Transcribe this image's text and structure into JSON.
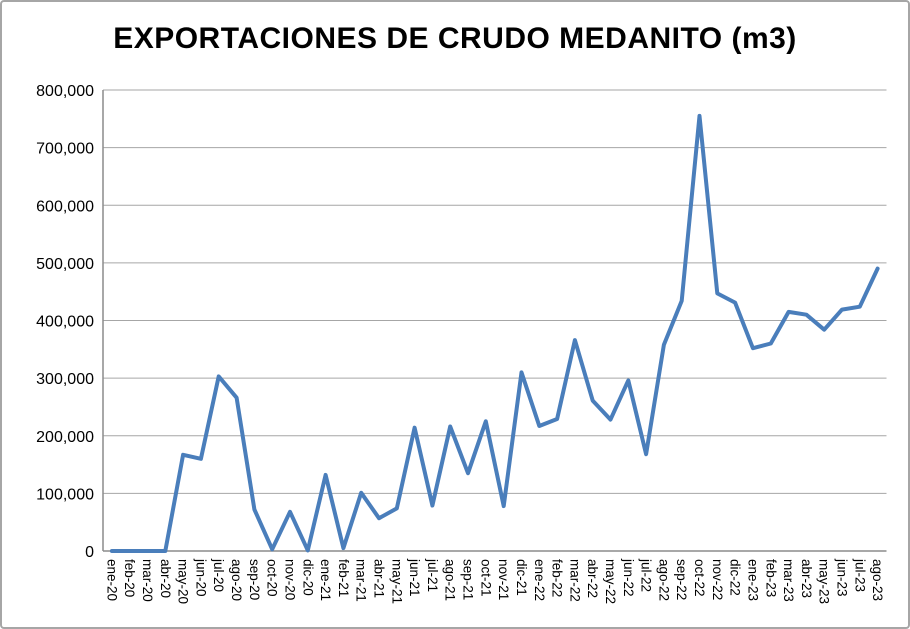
{
  "chart": {
    "title": "EXPORTACIONES DE CRUDO MEDANITO (m3)"
  },
  "chart_data": {
    "type": "line",
    "title": "EXPORTACIONES DE CRUDO MEDANITO (m3)",
    "categories": [
      "ene-20",
      "feb-20",
      "mar-20",
      "abr-20",
      "may-20",
      "jun-20",
      "jul-20",
      "ago-20",
      "sep-20",
      "oct-20",
      "nov-20",
      "dic-20",
      "ene-21",
      "feb-21",
      "mar-21",
      "abr-21",
      "may-21",
      "jun-21",
      "jul-21",
      "ago-21",
      "sep-21",
      "oct-21",
      "nov-21",
      "dic-21",
      "ene-22",
      "feb-22",
      "mar-22",
      "abr-22",
      "may-22",
      "jun-22",
      "jul-22",
      "ago-22",
      "sep-22",
      "oct-22",
      "nov-22",
      "dic-22",
      "ene-23",
      "feb-23",
      "mar-23",
      "abr-23",
      "may-23",
      "jun-23",
      "jul-23",
      "ago-23"
    ],
    "values": [
      0,
      0,
      0,
      0,
      167000,
      160000,
      303000,
      266000,
      72000,
      3000,
      68000,
      1000,
      132000,
      5000,
      101000,
      57000,
      74000,
      214000,
      79000,
      216000,
      135000,
      225000,
      78000,
      310000,
      217000,
      229000,
      366000,
      261000,
      228000,
      296000,
      168000,
      358000,
      434000,
      755000,
      447000,
      431000,
      352000,
      360000,
      415000,
      410000,
      384000,
      419000,
      424000,
      490000
    ],
    "xlabel": "",
    "ylabel": "",
    "ylim": [
      0,
      800000
    ],
    "ytick_step": 100000,
    "ytick_labels": [
      "0",
      "100,000",
      "200,000",
      "300,000",
      "400,000",
      "500,000",
      "600,000",
      "700,000",
      "800,000"
    ],
    "grid": true,
    "legend_position": "none",
    "line_color": "#4a7ebb",
    "gridline_color": "#a6a6a6",
    "axis_color": "#8c8c8c",
    "background": "#ffffff"
  }
}
